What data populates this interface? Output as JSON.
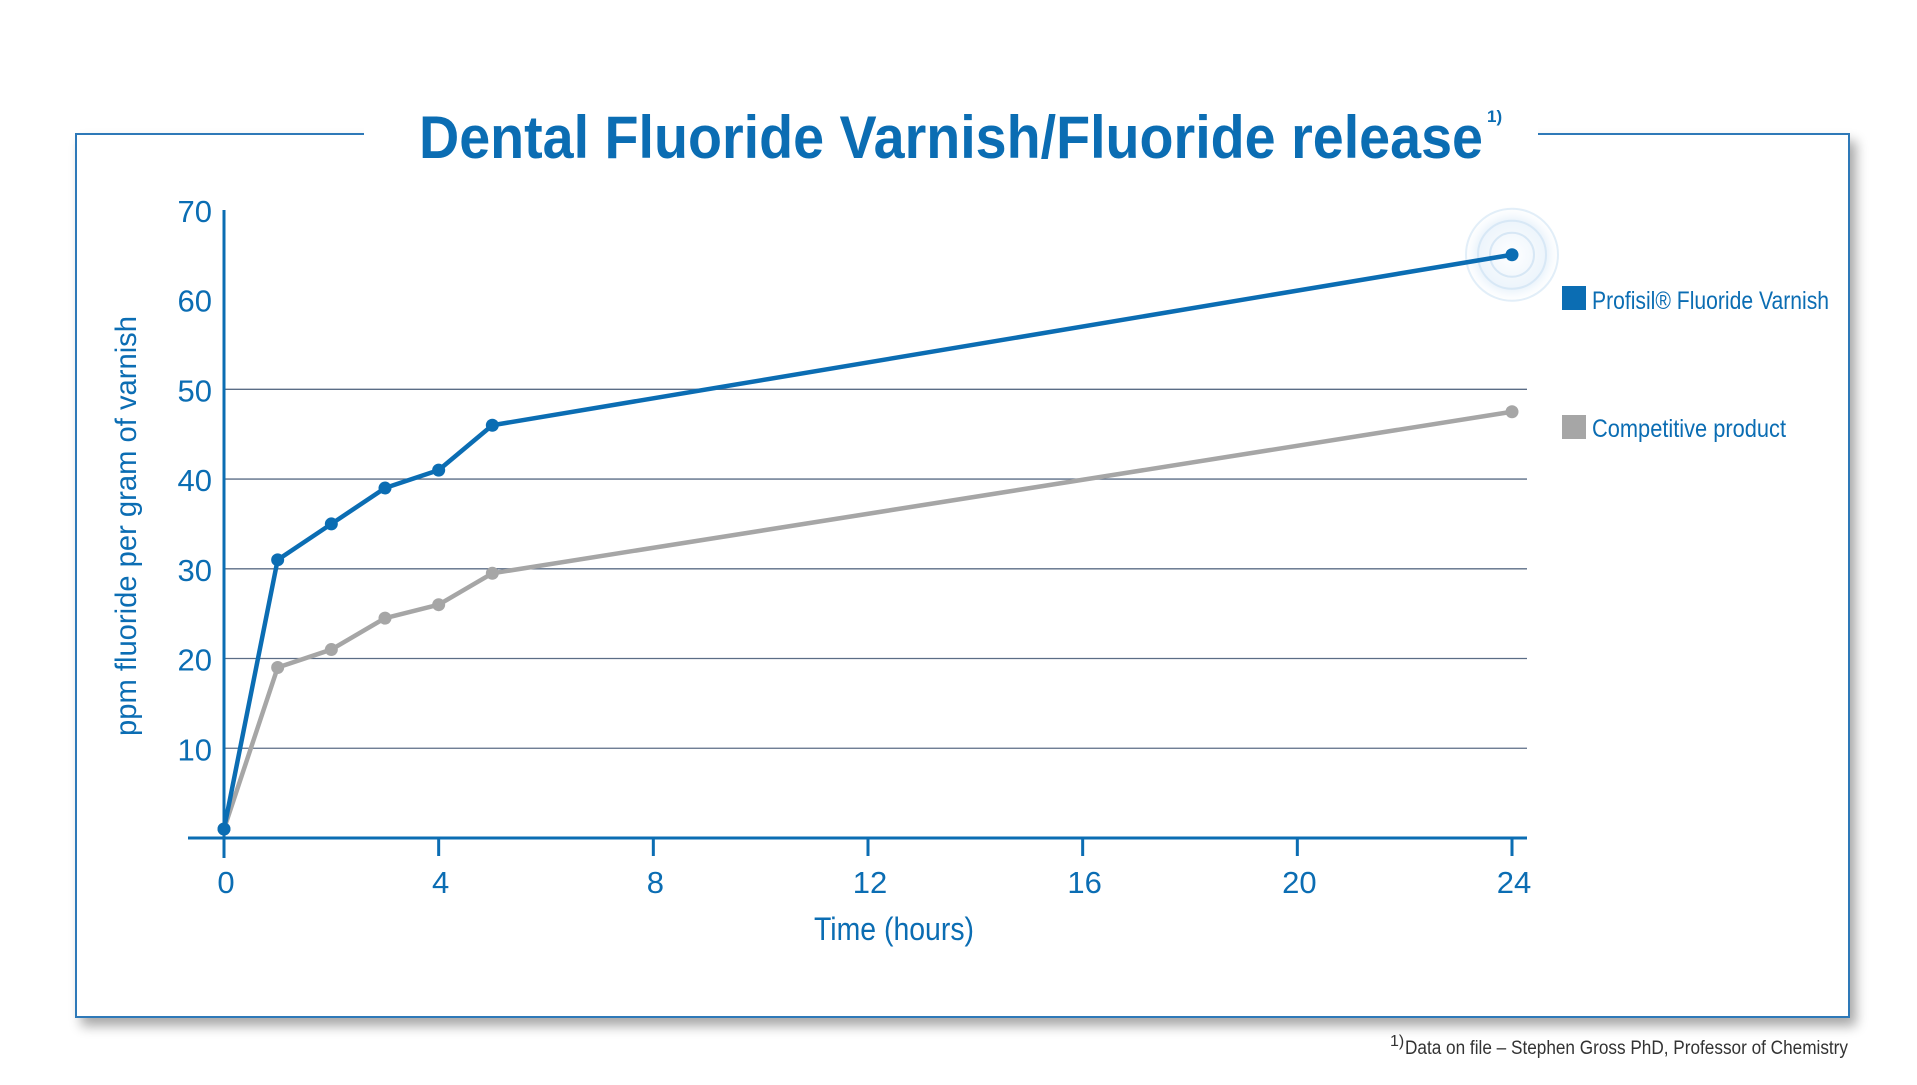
{
  "colors": {
    "brand_blue": "#0b6db3",
    "competitor_gray": "#a6a6a6",
    "gridline": "#5b6d86",
    "frame": "#2f79b8",
    "footnote_text": "#333333"
  },
  "chart_data": {
    "type": "line",
    "title": "Dental Fluoride Varnish/Fluoride release",
    "title_superscript": "1)",
    "xlabel": "Time (hours)",
    "ylabel": "ppm fluoride per gram of varnish",
    "xlim": [
      0,
      24
    ],
    "ylim": [
      0,
      75
    ],
    "x_ticks": [
      0,
      4,
      8,
      12,
      16,
      20,
      24
    ],
    "y_ticks": [
      10,
      20,
      30,
      40,
      50,
      60,
      70
    ],
    "grid": "horizontal at 10, 20, 30, 40, 50",
    "legend_position": "right",
    "series": [
      {
        "name": "Profisil® Fluoride Varnish",
        "color": "#0b6db3",
        "x": [
          0,
          1,
          2,
          3,
          4,
          5,
          24
        ],
        "y": [
          1,
          31,
          35,
          39,
          41,
          46,
          65
        ],
        "highlight_last_point": true
      },
      {
        "name": "Competitive product",
        "color": "#a6a6a6",
        "x": [
          0,
          1,
          2,
          3,
          4,
          5,
          24
        ],
        "y": [
          1,
          19,
          21,
          24.5,
          26,
          29.5,
          47.5
        ]
      }
    ]
  },
  "footnote": {
    "marker": "1)",
    "text": "Data on file – Stephen Gross PhD, Professor of Chemistry"
  }
}
